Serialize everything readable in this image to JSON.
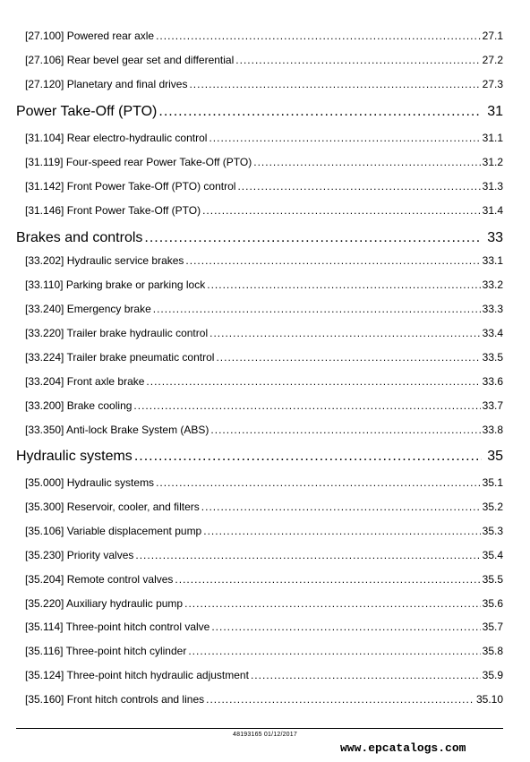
{
  "entries": [
    {
      "kind": "sub",
      "title": "[27.100] Powered rear axle",
      "page": "27.1"
    },
    {
      "kind": "sub",
      "title": "[27.106] Rear bevel gear set and differential",
      "page": "27.2"
    },
    {
      "kind": "sub",
      "title": "[27.120] Planetary and final drives",
      "page": "27.3"
    },
    {
      "kind": "sec",
      "title": "Power Take-Off (PTO)",
      "page": "31"
    },
    {
      "kind": "sub",
      "title": "[31.104] Rear electro-hydraulic control",
      "page": "31.1"
    },
    {
      "kind": "sub",
      "title": "[31.119] Four-speed rear Power Take-Off (PTO)",
      "page": "31.2"
    },
    {
      "kind": "sub",
      "title": "[31.142] Front Power Take-Off (PTO) control",
      "page": "31.3"
    },
    {
      "kind": "sub",
      "title": "[31.146] Front Power Take-Off (PTO)",
      "page": "31.4"
    },
    {
      "kind": "sec",
      "title": "Brakes and controls",
      "page": "33"
    },
    {
      "kind": "sub",
      "title": "[33.202] Hydraulic service brakes",
      "page": "33.1"
    },
    {
      "kind": "sub",
      "title": "[33.110] Parking brake or parking lock",
      "page": "33.2"
    },
    {
      "kind": "sub",
      "title": "[33.240] Emergency brake",
      "page": "33.3"
    },
    {
      "kind": "sub",
      "title": "[33.220] Trailer brake hydraulic control",
      "page": "33.4"
    },
    {
      "kind": "sub",
      "title": "[33.224] Trailer brake pneumatic control",
      "page": "33.5"
    },
    {
      "kind": "sub",
      "title": "[33.204] Front axle brake",
      "page": "33.6"
    },
    {
      "kind": "sub",
      "title": "[33.200] Brake cooling",
      "page": "33.7"
    },
    {
      "kind": "sub",
      "title": "[33.350] Anti-lock Brake System (ABS)",
      "page": "33.8"
    },
    {
      "kind": "sec",
      "title": "Hydraulic systems",
      "page": "35"
    },
    {
      "kind": "sub",
      "title": "[35.000] Hydraulic systems",
      "page": "35.1"
    },
    {
      "kind": "sub",
      "title": "[35.300] Reservoir, cooler, and filters",
      "page": "35.2"
    },
    {
      "kind": "sub",
      "title": "[35.106] Variable displacement pump",
      "page": "35.3"
    },
    {
      "kind": "sub",
      "title": "[35.230] Priority valves",
      "page": "35.4"
    },
    {
      "kind": "sub",
      "title": "[35.204] Remote control valves",
      "page": "35.5"
    },
    {
      "kind": "sub",
      "title": "[35.220] Auxiliary hydraulic pump",
      "page": "35.6"
    },
    {
      "kind": "sub",
      "title": "[35.114] Three-point hitch control valve",
      "page": "35.7"
    },
    {
      "kind": "sub",
      "title": "[35.116] Three-point hitch cylinder",
      "page": "35.8"
    },
    {
      "kind": "sub",
      "title": "[35.124] Three-point hitch hydraulic adjustment",
      "page": "35.9"
    },
    {
      "kind": "sub",
      "title": "[35.160] Front hitch controls and lines",
      "page": "35.10"
    }
  ],
  "footer": {
    "doc_id": "48193165 01/12/2017",
    "watermark": "www.epcatalogs.com"
  }
}
